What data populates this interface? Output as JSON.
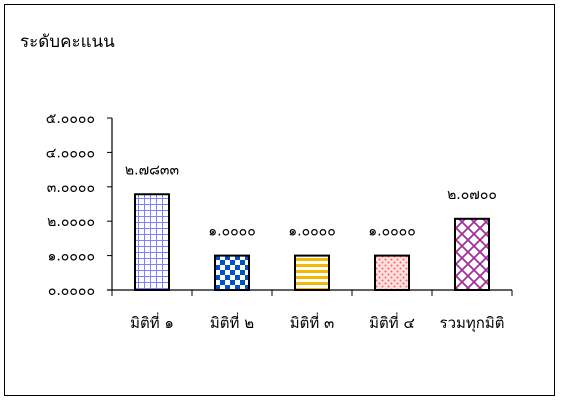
{
  "chart_data": {
    "type": "bar",
    "title": "ระดับคะแนน",
    "categories": [
      "มิติที่ ๑",
      "มิติที่ ๒",
      "มิติที่ ๓",
      "มิติที่ ๔",
      "รวมทุกมิติ"
    ],
    "values": [
      2.7833,
      1.0,
      1.0,
      1.0,
      2.07
    ],
    "data_labels": [
      "๒.๗๘๓๓",
      "๑.๐๐๐๐",
      "๑.๐๐๐๐",
      "๑.๐๐๐๐",
      "๒.๐๗๐๐"
    ],
    "y_ticks": [
      {
        "value": 0,
        "label": "๐.๐๐๐๐"
      },
      {
        "value": 1,
        "label": "๑.๐๐๐๐"
      },
      {
        "value": 2,
        "label": "๒.๐๐๐๐"
      },
      {
        "value": 3,
        "label": "๓.๐๐๐๐"
      },
      {
        "value": 4,
        "label": "๔.๐๐๐๐"
      },
      {
        "value": 5,
        "label": "๕.๐๐๐๐"
      }
    ],
    "ylim": [
      0,
      5
    ],
    "grid": false,
    "legend": "none",
    "bar_patterns": [
      "grid",
      "checker",
      "hstripe",
      "dots",
      "diagcross"
    ],
    "bar_colors": [
      "#8080ff",
      "#0050c8",
      "#f5b800",
      "#ff6060",
      "#a0309a"
    ]
  }
}
